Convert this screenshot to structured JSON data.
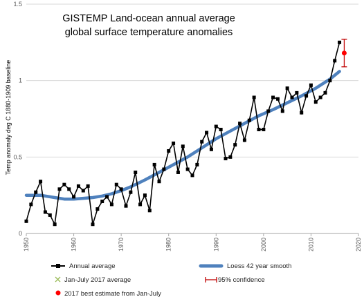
{
  "chart_data": {
    "type": "line",
    "title_lines": [
      "GISTEMP Land-ocean annual average",
      "global surface temperature anomalies"
    ],
    "xlabel": "",
    "ylabel": "Temp anomaly deg C 1880-1909 baseline",
    "xlim": [
      1950,
      2020
    ],
    "ylim": [
      0,
      1.5
    ],
    "x_ticks": [
      "1950",
      "1960",
      "1970",
      "1980",
      "1990",
      "2000",
      "2010",
      "2020"
    ],
    "y_ticks": [
      "0",
      "0.5",
      "1",
      "1.5"
    ],
    "grid": "horizontal",
    "legend_position": "bottom",
    "colors": {
      "annual": "#000000",
      "loess": "#4f81bd",
      "jan_july_avg": "#9bbb59",
      "best_estimate": "#ff0000",
      "confidence": "#c00000",
      "grid": "#d9d9d9"
    },
    "series": [
      {
        "name": "Annual average",
        "x": [
          1950,
          1951,
          1952,
          1953,
          1954,
          1955,
          1956,
          1957,
          1958,
          1959,
          1960,
          1961,
          1962,
          1963,
          1964,
          1965,
          1966,
          1967,
          1968,
          1969,
          1970,
          1971,
          1972,
          1973,
          1974,
          1975,
          1976,
          1977,
          1978,
          1979,
          1980,
          1981,
          1982,
          1983,
          1984,
          1985,
          1986,
          1987,
          1988,
          1989,
          1990,
          1991,
          1992,
          1993,
          1994,
          1995,
          1996,
          1997,
          1998,
          1999,
          2000,
          2001,
          2002,
          2003,
          2004,
          2005,
          2006,
          2007,
          2008,
          2009,
          2010,
          2011,
          2012,
          2013,
          2014,
          2015,
          2016
        ],
        "y": [
          0.08,
          0.19,
          0.27,
          0.34,
          0.14,
          0.12,
          0.06,
          0.29,
          0.32,
          0.29,
          0.24,
          0.31,
          0.28,
          0.31,
          0.06,
          0.16,
          0.21,
          0.24,
          0.19,
          0.32,
          0.29,
          0.18,
          0.27,
          0.4,
          0.19,
          0.25,
          0.15,
          0.45,
          0.34,
          0.42,
          0.54,
          0.59,
          0.4,
          0.57,
          0.42,
          0.38,
          0.45,
          0.6,
          0.66,
          0.55,
          0.7,
          0.68,
          0.49,
          0.5,
          0.58,
          0.72,
          0.61,
          0.74,
          0.89,
          0.68,
          0.68,
          0.8,
          0.89,
          0.88,
          0.8,
          0.95,
          0.89,
          0.92,
          0.79,
          0.9,
          0.97,
          0.86,
          0.89,
          0.92,
          1.0,
          1.13,
          1.25
        ]
      },
      {
        "name": "Loess 42 year smooth",
        "x": [
          1950,
          1953,
          1956,
          1958,
          1960,
          1962,
          1964,
          1966,
          1968,
          1970,
          1972,
          1975,
          1978,
          1981,
          1984,
          1987,
          1990,
          1993,
          1996,
          1999,
          2002,
          2005,
          2008,
          2011,
          2014,
          2016
        ],
        "y": [
          0.25,
          0.25,
          0.235,
          0.225,
          0.225,
          0.23,
          0.235,
          0.245,
          0.26,
          0.28,
          0.305,
          0.35,
          0.4,
          0.45,
          0.5,
          0.56,
          0.62,
          0.67,
          0.72,
          0.77,
          0.81,
          0.855,
          0.9,
          0.95,
          1.01,
          1.06
        ]
      },
      {
        "name": "Jan-July 2017 average",
        "x": [],
        "y": []
      },
      {
        "name": "2017 best estimate from Jan-July",
        "x": [
          2017
        ],
        "y": [
          1.18
        ]
      },
      {
        "name": "95% confidence",
        "x": [
          2017
        ],
        "low": [
          1.09
        ],
        "high": [
          1.27
        ]
      }
    ]
  }
}
